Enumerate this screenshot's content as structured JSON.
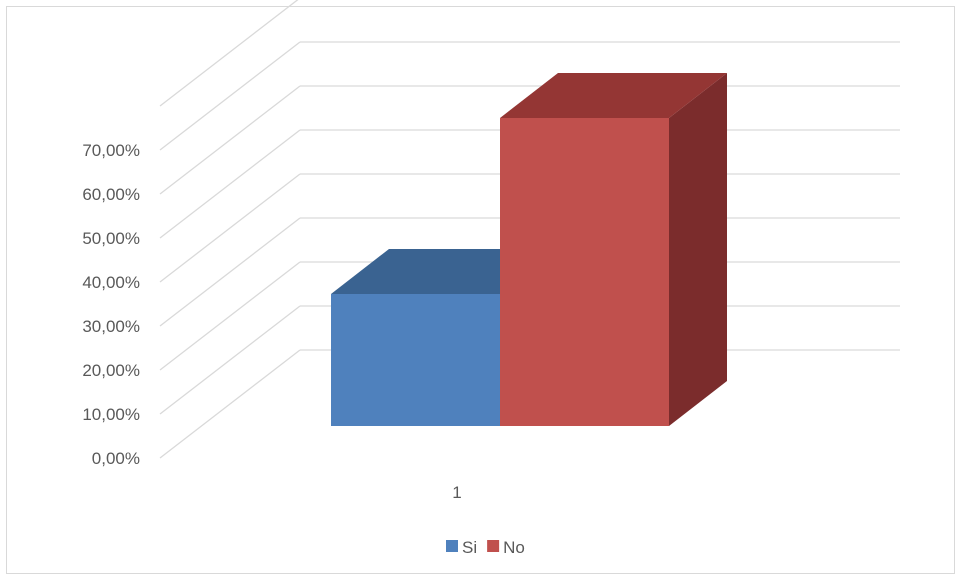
{
  "chart_data": {
    "type": "bar",
    "style": "3d-clustered-column",
    "categories": [
      "1"
    ],
    "series": [
      {
        "name": "Si",
        "values": [
          30.0
        ],
        "color": "#4f81bd",
        "top_color": "#3a6391",
        "side_color": "#2f507a"
      },
      {
        "name": "No",
        "values": [
          70.0
        ],
        "color": "#c0504d",
        "top_color": "#943634",
        "side_color": "#7b2c2c"
      }
    ],
    "y_ticks": [
      "0,00%",
      "10,00%",
      "20,00%",
      "30,00%",
      "40,00%",
      "50,00%",
      "60,00%",
      "70,00%"
    ],
    "ylim": [
      0,
      70
    ],
    "grid": true,
    "legend": "bottom",
    "title": "",
    "xlabel": "",
    "ylabel": ""
  }
}
